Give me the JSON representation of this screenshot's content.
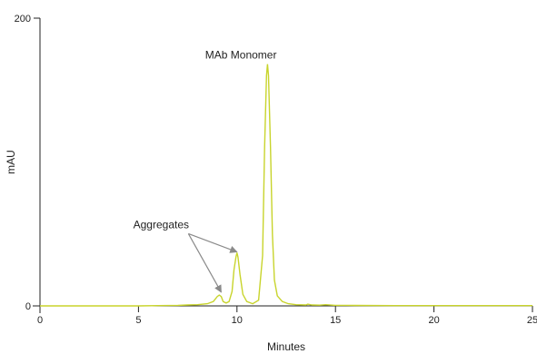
{
  "chart_data": {
    "type": "line",
    "xlabel": "Minutes",
    "ylabel": "mAU",
    "xlim": [
      0,
      25
    ],
    "ylim": [
      0,
      200
    ],
    "x_ticks": [
      0,
      5,
      10,
      15,
      20,
      25
    ],
    "y_ticks": [
      0,
      200
    ],
    "grid": false,
    "colors": {
      "trace": "#c8d42c",
      "axis": "#222222",
      "arrow": "#8a8a8a"
    },
    "series": [
      {
        "x": [
          0,
          1,
          2,
          3,
          4,
          5,
          6,
          7,
          7.5,
          8,
          8.5,
          8.8,
          9.0,
          9.1,
          9.2,
          9.3,
          9.45,
          9.6,
          9.75,
          9.85,
          9.95,
          10.0,
          10.05,
          10.15,
          10.3,
          10.5,
          10.8,
          11.1,
          11.3,
          11.4,
          11.5,
          11.55,
          11.6,
          11.7,
          11.8,
          11.9,
          12.05,
          12.3,
          12.6,
          13.0,
          13.5,
          13.6,
          13.8,
          14.2,
          14.5,
          15.0,
          16.0,
          18.0,
          20.0,
          22.0,
          24.0,
          25.0
        ],
        "y": [
          0,
          0,
          0,
          0,
          0,
          0,
          0.2,
          0.4,
          0.6,
          0.8,
          1.5,
          3,
          6.5,
          7.5,
          6.5,
          3,
          2,
          3,
          10,
          25,
          34,
          37,
          34,
          22,
          8,
          3,
          1.5,
          4,
          35,
          110,
          160,
          168,
          160,
          110,
          50,
          18,
          7,
          3,
          1.5,
          0.8,
          0.6,
          1.2,
          0.6,
          0.5,
          0.8,
          0.4,
          0.3,
          0.2,
          0.2,
          0.2,
          0.2,
          0.2
        ]
      }
    ],
    "annotations": [
      {
        "text": "MAb Monomer",
        "x": 10.2,
        "y": 172
      },
      {
        "text": "Aggregates",
        "x": 6.15,
        "y": 54,
        "arrows_to": [
          [
            9.2,
            9.5
          ],
          [
            10.0,
            37.5
          ]
        ]
      }
    ]
  }
}
